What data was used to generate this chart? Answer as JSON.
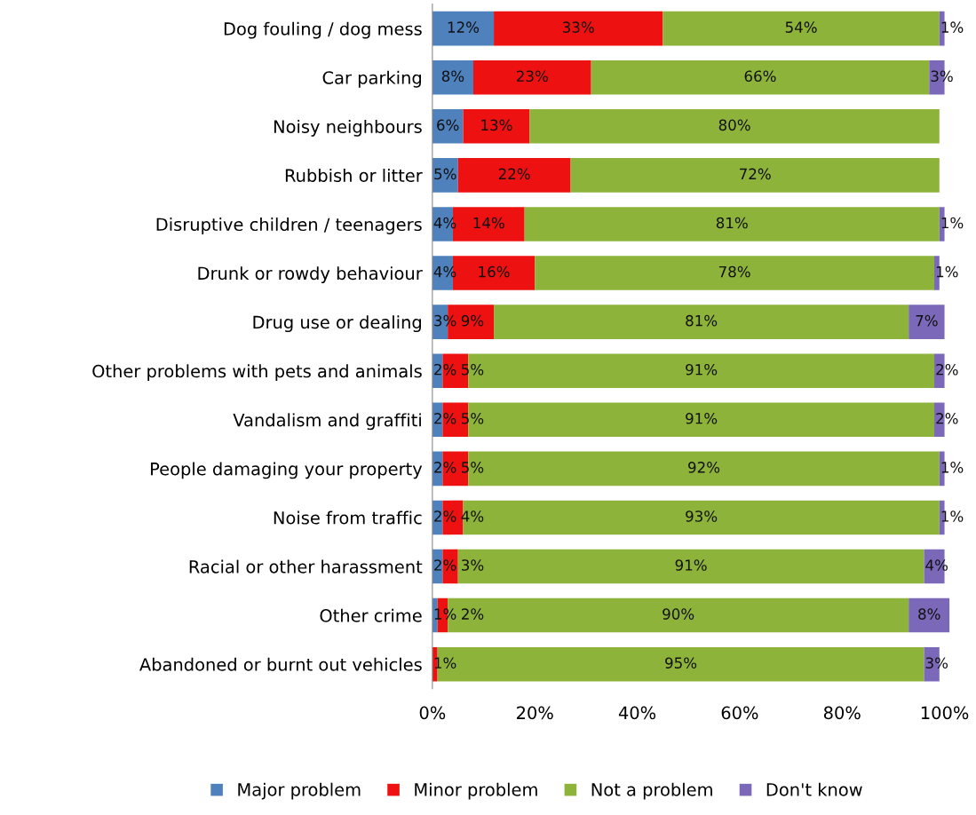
{
  "chart_data": {
    "type": "bar",
    "orientation": "horizontal",
    "stacked": true,
    "categories": [
      "Dog fouling / dog mess",
      "Car parking",
      "Noisy neighbours",
      "Rubbish or litter",
      "Disruptive children / teenagers",
      "Drunk or rowdy behaviour",
      "Drug use or dealing",
      "Other problems with pets and animals",
      "Vandalism and graffiti",
      "People damaging your property",
      "Noise from traffic",
      "Racial or other harassment",
      "Other crime",
      "Abandoned or burnt out vehicles"
    ],
    "series": [
      {
        "name": "Major problem",
        "color": "#4f81bd",
        "values": [
          12,
          8,
          6,
          5,
          4,
          4,
          3,
          2,
          2,
          2,
          2,
          2,
          1,
          null
        ],
        "value_labels": [
          "12%",
          "8%",
          "6%",
          "5%",
          "4%",
          "4%",
          "3%",
          "2%",
          "2%",
          "2%",
          "2%",
          "2%",
          "1%",
          null
        ]
      },
      {
        "name": "Minor problem",
        "color": "#ee1111",
        "values": [
          33,
          23,
          13,
          22,
          14,
          16,
          9,
          5,
          5,
          5,
          4,
          3,
          2,
          1
        ],
        "value_labels": [
          "33%",
          "23%",
          "13%",
          "22%",
          "14%",
          "16%",
          "9%",
          "5%",
          "5%",
          "5%",
          "4%",
          "3%",
          "2%",
          "1%"
        ]
      },
      {
        "name": "Not a problem",
        "color": "#8db33a",
        "values": [
          54,
          66,
          80,
          72,
          81,
          78,
          81,
          91,
          91,
          92,
          93,
          91,
          90,
          95
        ],
        "value_labels": [
          "54%",
          "66%",
          "80%",
          "72%",
          "81%",
          "78%",
          "81%",
          "91%",
          "91%",
          "92%",
          "93%",
          "91%",
          "90%",
          "95%"
        ]
      },
      {
        "name": "Don't know",
        "color": "#7b68b8",
        "values": [
          1,
          3,
          null,
          null,
          1,
          1,
          7,
          2,
          2,
          1,
          1,
          4,
          8,
          3
        ],
        "value_labels": [
          "1%",
          "3%",
          null,
          null,
          "1%",
          "1%",
          "7%",
          "2%",
          "2%",
          "1%",
          "1%",
          "4%",
          "8%",
          "3%"
        ]
      }
    ],
    "xlim": [
      0,
      101
    ],
    "xticks": [
      {
        "value": 0,
        "label": "0%"
      },
      {
        "value": 20,
        "label": "20%"
      },
      {
        "value": 40,
        "label": "40%"
      },
      {
        "value": 60,
        "label": "60%"
      },
      {
        "value": 80,
        "label": "80%"
      },
      {
        "value": 100,
        "label": "100%"
      }
    ],
    "grid": false,
    "legend": "bottom"
  }
}
